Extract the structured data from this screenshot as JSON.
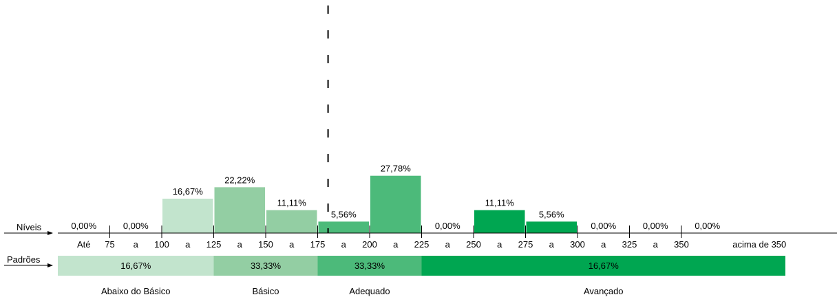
{
  "chart_data": {
    "type": "bar",
    "row_labels": {
      "levels": "Níveis",
      "standards": "Padrões"
    },
    "categories": [
      "Até 75",
      "75 a 100",
      "100 a 125",
      "125 a 150",
      "150 a 175",
      "175 a 200",
      "200 a 225",
      "225 a 250",
      "250 a 275",
      "275 a 300",
      "300 a 325",
      "325 a 350",
      "acima de 350"
    ],
    "values": [
      0.0,
      0.0,
      16.67,
      22.22,
      11.11,
      5.56,
      27.78,
      0.0,
      11.11,
      5.56,
      0.0,
      0.0,
      0.0
    ],
    "value_labels": [
      "0,00%",
      "0,00%",
      "16,67%",
      "22,22%",
      "11,11%",
      "5,56%",
      "27,78%",
      "0,00%",
      "11,11%",
      "5,56%",
      "0,00%",
      "0,00%",
      "0,00%"
    ],
    "bar_colors": [
      "#c2e4cd",
      "#c2e4cd",
      "#c2e4cd",
      "#93cea3",
      "#93cea3",
      "#4cba7a",
      "#4cba7a",
      "#00a651",
      "#00a651",
      "#00a651",
      "#00a651",
      "#00a651",
      "#00a651"
    ],
    "axis_tokens": [
      "Até",
      "75",
      "a",
      "100",
      "a",
      "125",
      "a",
      "150",
      "a",
      "175",
      "a",
      "200",
      "a",
      "225",
      "a",
      "250",
      "a",
      "275",
      "a",
      "300",
      "a",
      "325",
      "a",
      "350",
      "acima de 350"
    ],
    "reference_line": {
      "value": 180,
      "style": "dashed"
    },
    "standards": [
      {
        "name": "Abaixo do Básico",
        "value_label": "16,67%",
        "from": 50,
        "to": 125,
        "color": "#c2e4cd"
      },
      {
        "name": "Básico",
        "value_label": "33,33%",
        "from": 125,
        "to": 175,
        "color": "#93cea3"
      },
      {
        "name": "Adequado",
        "value_label": "33,33%",
        "from": 175,
        "to": 225,
        "color": "#4cba7a"
      },
      {
        "name": "Avançado",
        "value_label": "16,67%",
        "from": 225,
        "to": 400,
        "color": "#00a651"
      }
    ],
    "ylim": [
      0,
      40
    ]
  }
}
